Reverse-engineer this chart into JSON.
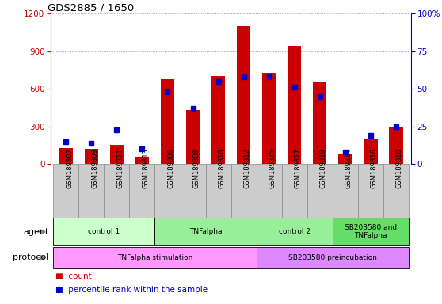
{
  "title": "GDS2885 / 1650",
  "samples": [
    "GSM189807",
    "GSM189809",
    "GSM189811",
    "GSM189813",
    "GSM189806",
    "GSM189808",
    "GSM189810",
    "GSM189812",
    "GSM189815",
    "GSM189817",
    "GSM189819",
    "GSM189814",
    "GSM189816",
    "GSM189818"
  ],
  "counts": [
    130,
    120,
    155,
    60,
    680,
    430,
    700,
    1100,
    730,
    940,
    660,
    80,
    200,
    290
  ],
  "percentiles": [
    15,
    14,
    23,
    10,
    48,
    37,
    55,
    58,
    58,
    51,
    45,
    8,
    19,
    25
  ],
  "ylim_left": [
    0,
    1200
  ],
  "ylim_right": [
    0,
    100
  ],
  "yticks_left": [
    0,
    300,
    600,
    900,
    1200
  ],
  "yticks_right": [
    0,
    25,
    50,
    75,
    100
  ],
  "bar_color": "#cc0000",
  "dot_color": "#0000cc",
  "agent_groups": [
    {
      "label": "control 1",
      "start": 0,
      "end": 4,
      "color": "#ccffcc"
    },
    {
      "label": "TNFalpha",
      "start": 4,
      "end": 8,
      "color": "#99ee99"
    },
    {
      "label": "control 2",
      "start": 8,
      "end": 11,
      "color": "#99ee99"
    },
    {
      "label": "SB203580 and\nTNFalpha",
      "start": 11,
      "end": 14,
      "color": "#66dd66"
    }
  ],
  "protocol_groups": [
    {
      "label": "TNFalpha stimulation",
      "start": 0,
      "end": 8,
      "color": "#ff99ff"
    },
    {
      "label": "SB203580 preincubation",
      "start": 8,
      "end": 14,
      "color": "#dd88ff"
    }
  ],
  "left_axis_color": "#cc0000",
  "right_axis_color": "#0000cc",
  "grid_color": "#888888",
  "sample_bg_color": "#cccccc",
  "sample_edge_color": "#888888"
}
